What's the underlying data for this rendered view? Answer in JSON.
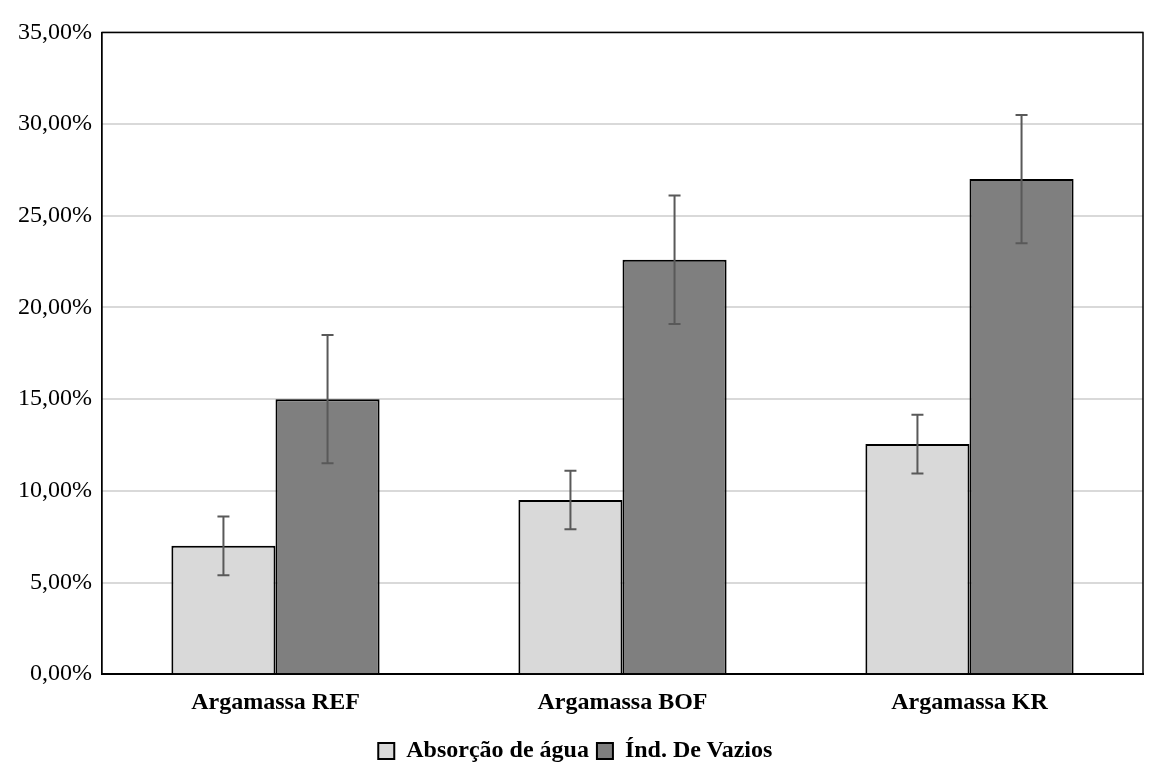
{
  "chart_data": {
    "type": "bar",
    "categories": [
      "Argamassa REF",
      "Argamassa BOF",
      "Argamassa KR"
    ],
    "series": [
      {
        "name": "Absorção de água",
        "color": "#d9d9d9",
        "values": [
          7.0,
          9.5,
          12.55
        ],
        "errors": [
          1.6,
          1.6,
          1.6
        ]
      },
      {
        "name": "Índ. De Vazios",
        "color": "#7f7f7f",
        "values": [
          15.0,
          22.6,
          27.0
        ],
        "errors": [
          3.5,
          3.5,
          3.5
        ]
      }
    ],
    "ylim": [
      0,
      35
    ],
    "yticks": [
      {
        "value": 0,
        "label": "0,00%"
      },
      {
        "value": 5,
        "label": "5,00%"
      },
      {
        "value": 10,
        "label": "10,00%"
      },
      {
        "value": 15,
        "label": "15,00%"
      },
      {
        "value": 20,
        "label": "20,00%"
      },
      {
        "value": 25,
        "label": "25,00%"
      },
      {
        "value": 30,
        "label": "30,00%"
      },
      {
        "value": 35,
        "label": "35,00%"
      }
    ],
    "grid": "y",
    "legend": "bottom"
  }
}
